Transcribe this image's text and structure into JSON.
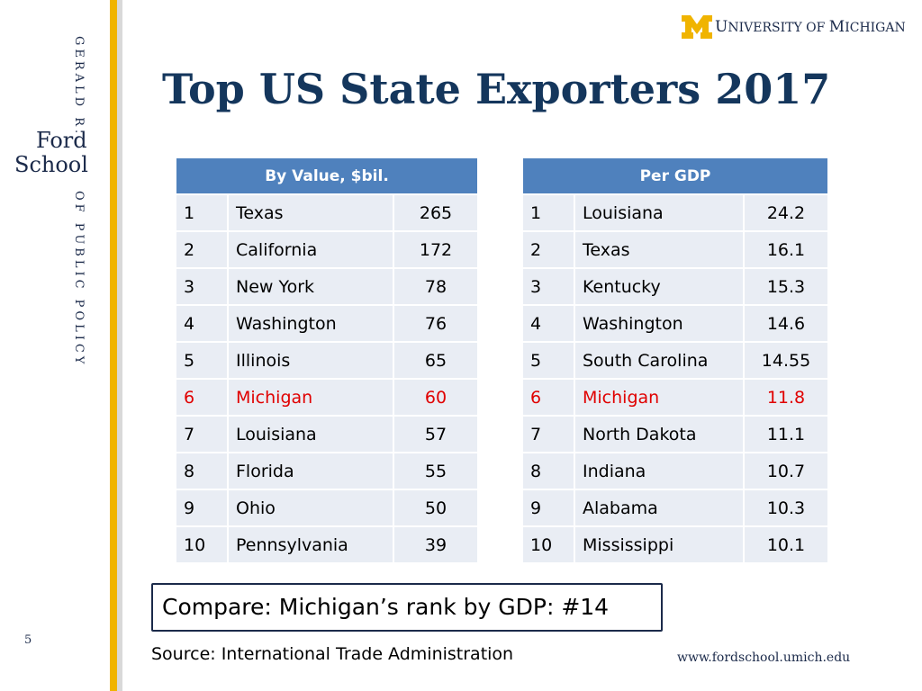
{
  "sidebar": {
    "gerald": "GERALD R.",
    "ford": "Ford",
    "school": "School",
    "public_policy": "OF PUBLIC POLICY",
    "slide_number": "5"
  },
  "brand": {
    "university_cap_u": "U",
    "university_rest": "NIVERSITY OF ",
    "michigan_cap_m": "M",
    "michigan_rest": "ICHIGAN",
    "colors": {
      "maize": "#f0b400",
      "blue": "#14365c",
      "header": "#4f81bd",
      "highlight": "#e00000"
    }
  },
  "title": "Top US State Exporters 2017",
  "tables": {
    "by_value": {
      "header": "By Value, $bil.",
      "rows": [
        {
          "rank": "1",
          "state": "Texas",
          "value": "265"
        },
        {
          "rank": "2",
          "state": "California",
          "value": "172"
        },
        {
          "rank": "3",
          "state": "New York",
          "value": "78"
        },
        {
          "rank": "4",
          "state": "Washington",
          "value": "76"
        },
        {
          "rank": "5",
          "state": "Illinois",
          "value": "65"
        },
        {
          "rank": "6",
          "state": "Michigan",
          "value": "60"
        },
        {
          "rank": "7",
          "state": "Louisiana",
          "value": "57"
        },
        {
          "rank": "8",
          "state": "Florida",
          "value": "55"
        },
        {
          "rank": "9",
          "state": "Ohio",
          "value": "50"
        },
        {
          "rank": "10",
          "state": "Pennsylvania",
          "value": "39"
        }
      ]
    },
    "per_gdp": {
      "header": "Per GDP",
      "rows": [
        {
          "rank": "1",
          "state": "Louisiana",
          "value": "24.2"
        },
        {
          "rank": "2",
          "state": "Texas",
          "value": "16.1"
        },
        {
          "rank": "3",
          "state": "Kentucky",
          "value": "15.3"
        },
        {
          "rank": "4",
          "state": "Washington",
          "value": "14.6"
        },
        {
          "rank": "5",
          "state": "South Carolina",
          "value": "14.55"
        },
        {
          "rank": "6",
          "state": "Michigan",
          "value": "11.8"
        },
        {
          "rank": "7",
          "state": "North Dakota",
          "value": "11.1"
        },
        {
          "rank": "8",
          "state": "Indiana",
          "value": "10.7"
        },
        {
          "rank": "9",
          "state": "Alabama",
          "value": "10.3"
        },
        {
          "rank": "10",
          "state": "Mississippi",
          "value": "10.1"
        }
      ]
    }
  },
  "compare_note": "Compare:  Michigan’s rank by GDP:  #14",
  "source": "Source:  International Trade Administration",
  "url": "www.fordschool.umich.edu"
}
